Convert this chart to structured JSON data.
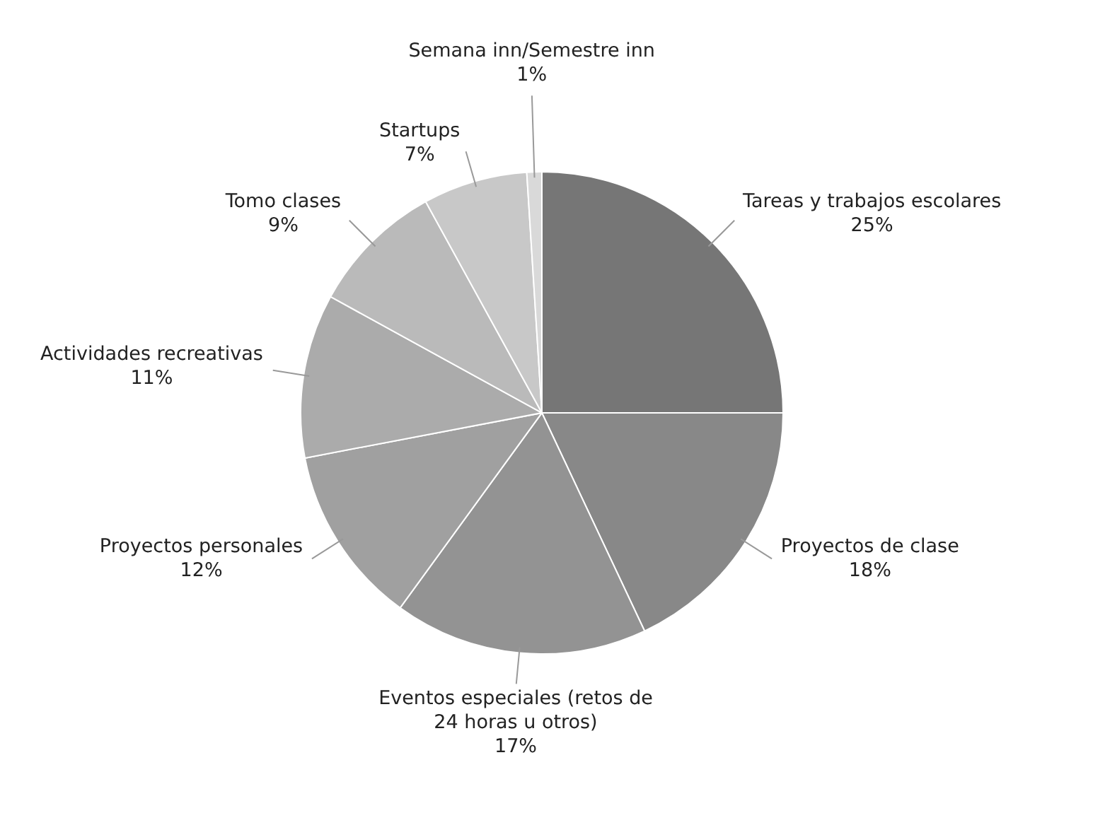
{
  "chart_data": {
    "type": "pie",
    "categories": [
      "Tareas y trabajos escolares",
      "Proyectos de clase",
      "Eventos especiales (retos de 24 horas u otros)",
      "Proyectos personales",
      "Actividades recreativas",
      "Tomo clases",
      "Startups",
      "Semana inn/Semestre inn"
    ],
    "values": [
      25,
      18,
      17,
      12,
      11,
      9,
      7,
      1
    ],
    "value_labels": [
      "25%",
      "18%",
      "17%",
      "12%",
      "11%",
      "9%",
      "7%",
      "1%"
    ],
    "colors": [
      "#767676",
      "#888888",
      "#939393",
      "#a0a0a0",
      "#ababab",
      "#bababa",
      "#c8c8c8",
      "#d9d9d9"
    ]
  }
}
